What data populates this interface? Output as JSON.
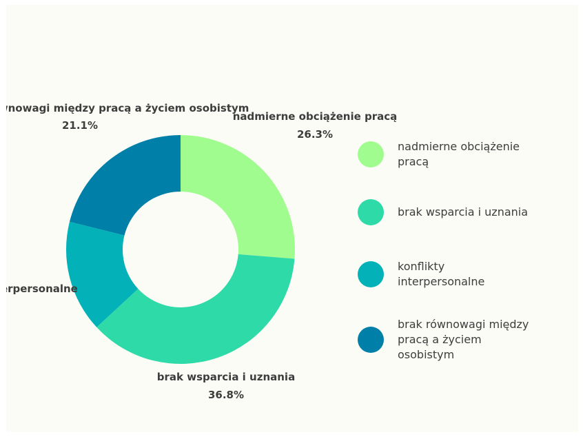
{
  "chart_data": {
    "type": "pie",
    "variant": "donut",
    "slices": [
      {
        "label": "nadmierne obciążenie pracą",
        "value": 26.3,
        "value_label": "26.3%",
        "color": "#a1fc8f"
      },
      {
        "label": "brak wsparcia i uznania",
        "value": 36.8,
        "value_label": "36.8%",
        "color": "#2edaa7"
      },
      {
        "label": "konflikty interpersonalne",
        "value": 15.8,
        "value_label": "",
        "color": "#03b2b8"
      },
      {
        "label": "brak równowagi między pracą a życiem osobistym",
        "value": 21.1,
        "value_label": "21.1%",
        "color": "#007fa8"
      }
    ],
    "visible_slice_labels": {
      "s0_name": "nadmierne obciążenie pracą",
      "s0_value": "26.3%",
      "s1_name": "brak wsparcia i uznania",
      "s1_value": "36.8%",
      "s2_name": "konflikty interpersonalne",
      "s3_name": "brak równowagi między pracą a życiem osobistym",
      "s3_value": "21.1%"
    },
    "legend": {
      "placement": "right",
      "items": [
        {
          "lines": [
            "nadmierne obciążenie",
            "pracą"
          ],
          "color": "#a1fc8f"
        },
        {
          "lines": [
            "brak wsparcia i uznania"
          ],
          "color": "#2edaa7"
        },
        {
          "lines": [
            "konflikty",
            "interpersonalne"
          ],
          "color": "#03b2b8"
        },
        {
          "lines": [
            "brak równowagi między",
            "pracą a życiem",
            "osobistym"
          ],
          "color": "#007fa8"
        }
      ]
    }
  },
  "colors": {
    "background": "#fbfcf6",
    "label_text": "#3d3d3d"
  }
}
